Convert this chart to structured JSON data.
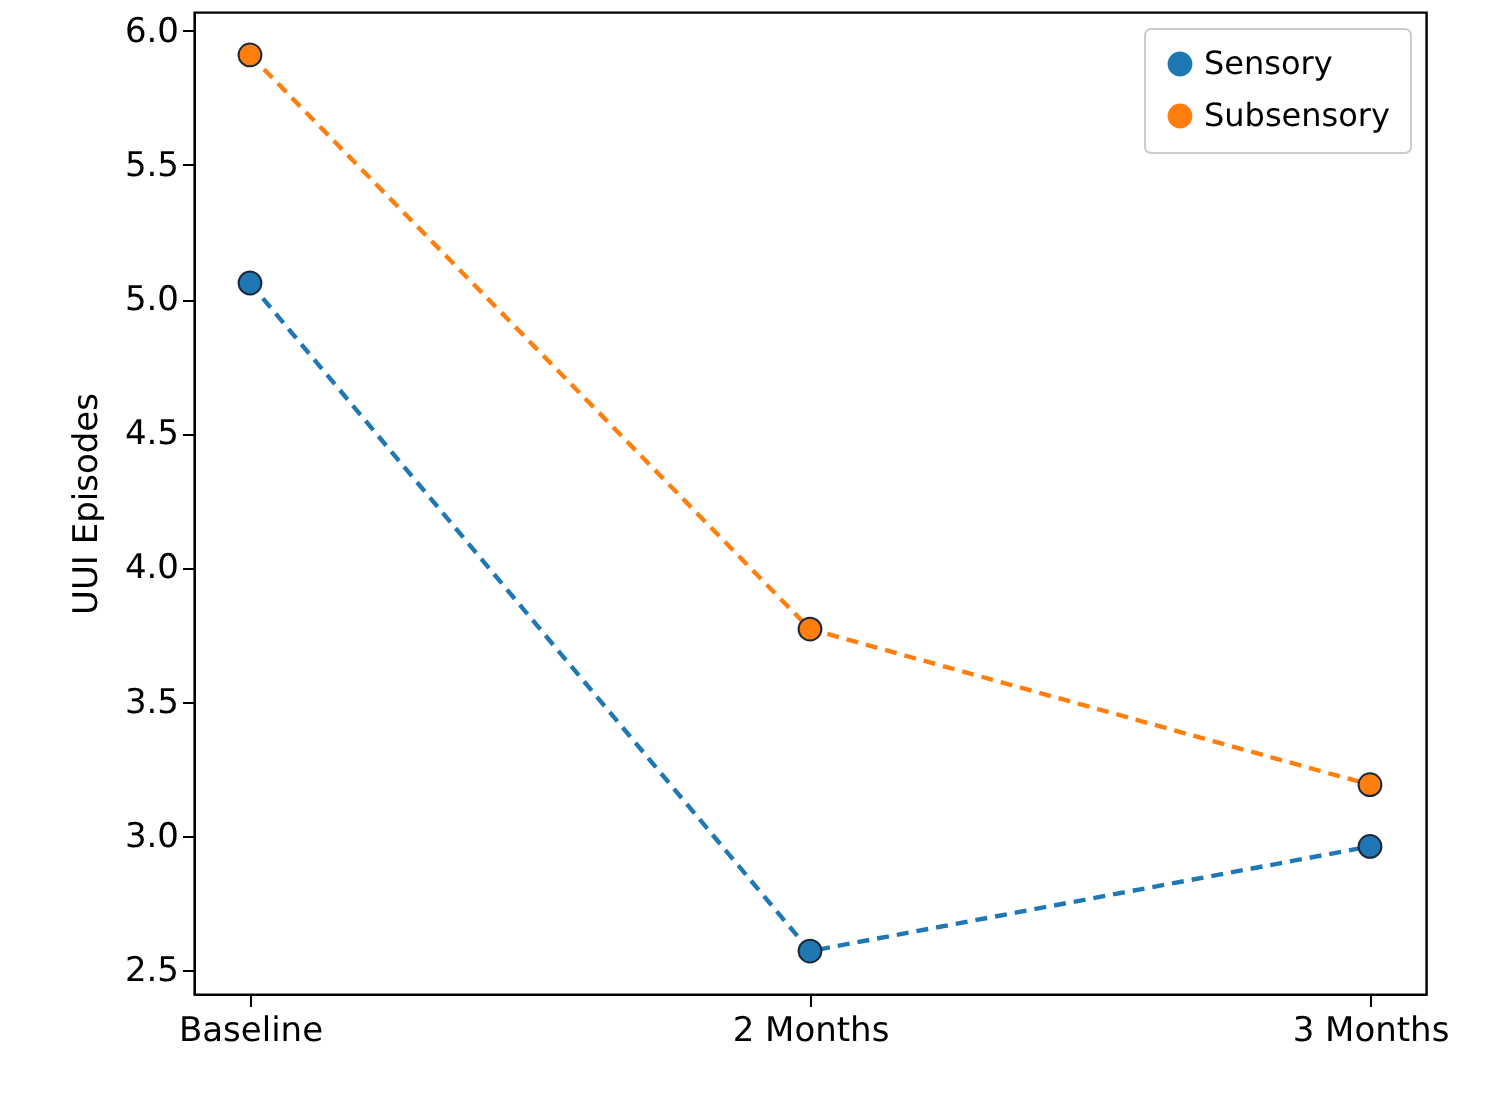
{
  "chart_data": {
    "type": "line",
    "ylabel": "UUI Episodes",
    "categories": [
      "Baseline",
      "2 Months",
      "3 Months"
    ],
    "series": [
      {
        "name": "Sensory",
        "color": "#1f77b4",
        "values": [
          5.06,
          2.57,
          2.96
        ]
      },
      {
        "name": "Subsensory",
        "color": "#ff7f0e",
        "values": [
          5.91,
          3.77,
          3.19
        ]
      }
    ],
    "ylim": [
      2.41,
      6.07
    ],
    "yticks": [
      2.5,
      {
        "value": 3,
        "label": "3.0"
      },
      3.5,
      {
        "value": 4,
        "label": "4.0"
      },
      4.5,
      {
        "value": 5,
        "label": "5.0"
      },
      5.5,
      {
        "value": 6,
        "label": "6.0"
      }
    ],
    "legend": "top right",
    "marker": "circle",
    "line_style": "dashed",
    "grid": false
  }
}
